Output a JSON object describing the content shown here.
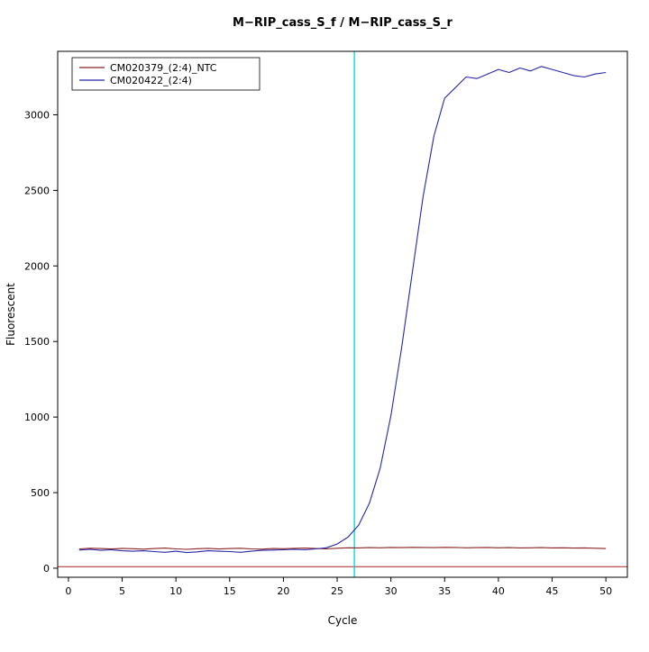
{
  "chart_data": {
    "type": "line",
    "title": "M−RIP_cass_S_f / M−RIP_cass_S_r",
    "xlabel": "Cycle",
    "ylabel": "Fluorescent",
    "xlim": [
      -1,
      52
    ],
    "ylim": [
      -60,
      3420
    ],
    "xticks": [
      0,
      5,
      10,
      15,
      20,
      25,
      30,
      35,
      40,
      45,
      50
    ],
    "yticks": [
      0,
      500,
      1000,
      1500,
      2000,
      2500,
      3000
    ],
    "grid": false,
    "legend_position": "top-left",
    "x": [
      1,
      2,
      3,
      4,
      5,
      6,
      7,
      8,
      9,
      10,
      11,
      12,
      13,
      14,
      15,
      16,
      17,
      18,
      19,
      20,
      21,
      22,
      23,
      24,
      25,
      26,
      27,
      28,
      29,
      30,
      31,
      32,
      33,
      34,
      35,
      36,
      37,
      38,
      39,
      40,
      41,
      42,
      43,
      44,
      45,
      46,
      47,
      48,
      49,
      50
    ],
    "series": [
      {
        "name": "CM020379_(2:4)_NTC",
        "color": "#8b2323",
        "values": [
          128,
          132,
          130,
          127,
          131,
          129,
          126,
          130,
          133,
          128,
          125,
          129,
          131,
          127,
          130,
          132,
          128,
          126,
          130,
          129,
          131,
          133,
          130,
          128,
          132,
          135,
          134,
          136,
          135,
          137,
          136,
          138,
          137,
          136,
          138,
          137,
          135,
          136,
          137,
          135,
          136,
          134,
          135,
          136,
          134,
          135,
          133,
          134,
          132,
          130
        ]
      },
      {
        "name": "CM020422_(2:4)",
        "color": "#2727a8",
        "values": [
          120,
          125,
          118,
          122,
          115,
          112,
          115,
          110,
          105,
          112,
          103,
          108,
          115,
          112,
          110,
          105,
          112,
          118,
          120,
          122,
          125,
          122,
          128,
          135,
          160,
          205,
          285,
          430,
          660,
          1010,
          1460,
          1960,
          2460,
          2860,
          3110,
          3180,
          3250,
          3240,
          3270,
          3300,
          3280,
          3310,
          3290,
          3320,
          3300,
          3280,
          3260,
          3250,
          3270,
          3280
        ]
      }
    ],
    "threshold_line": {
      "y": 10,
      "color": "#a82222"
    },
    "ct_line": {
      "x": 26.6,
      "color": "#00d5d5"
    },
    "box_color": "#000000"
  }
}
